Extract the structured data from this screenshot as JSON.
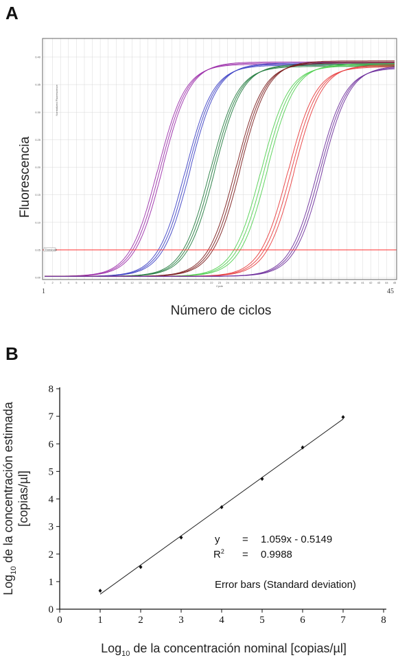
{
  "panelA": {
    "letter": "A",
    "ylabel": "Fluorescencia",
    "xlabel": "Número de ciclos",
    "x_start_label": "1",
    "x_end_label": "45",
    "threshold_label": "Threshold",
    "tiny_axis_label": "Cycle",
    "tiny_yaxis_label": "Normalized Fluorescence",
    "threshold_color": "#ff3030",
    "chart_data": {
      "type": "line",
      "xlim": [
        1,
        45
      ],
      "ylim": [
        0.0,
        0.4
      ],
      "y_ticks": [
        "0.00",
        "0.05",
        "0.10",
        "0.15",
        "0.20",
        "0.25",
        "0.30",
        "0.35",
        "0.40"
      ],
      "x_ticks": [
        "1",
        "2",
        "3",
        "4",
        "5",
        "6",
        "7",
        "8",
        "9",
        "10",
        "11",
        "12",
        "13",
        "14",
        "15",
        "16",
        "17",
        "18",
        "19",
        "20",
        "21",
        "22",
        "23",
        "24",
        "25",
        "26",
        "27",
        "28",
        "29",
        "30",
        "31",
        "32",
        "33",
        "34",
        "35",
        "36",
        "37",
        "38",
        "39",
        "40",
        "41",
        "42",
        "43",
        "44",
        "45"
      ],
      "threshold": 0.05,
      "groups": [
        {
          "color": "#9a2aa8",
          "midpoints": [
            15.2,
            15.5,
            15.8
          ],
          "plateau": 0.389
        },
        {
          "color": "#3b3fc4",
          "midpoints": [
            18.7,
            19.0,
            19.3
          ],
          "plateau": 0.387
        },
        {
          "color": "#1f7a3c",
          "midpoints": [
            21.8,
            22.1,
            22.4
          ],
          "plateau": 0.385
        },
        {
          "color": "#7a1a1a",
          "midpoints": [
            25.0,
            25.3,
            25.6
          ],
          "plateau": 0.391
        },
        {
          "color": "#4fcf4f",
          "midpoints": [
            28.2,
            28.6,
            29.0
          ],
          "plateau": 0.386
        },
        {
          "color": "#e8393a",
          "midpoints": [
            31.6,
            32.0,
            32.4
          ],
          "plateau": 0.384
        },
        {
          "color": "#6a2a9a",
          "midpoints": [
            35.3,
            35.6,
            35.9
          ],
          "plateau": 0.382
        }
      ]
    }
  },
  "panelB": {
    "letter": "B",
    "ylabel_line1_prefix": "Log",
    "ylabel_line1_sub": "10",
    "ylabel_line1_suffix": " de la concentración estimada",
    "ylabel_line2": "[copias/µl]",
    "xlabel_prefix": "Log",
    "xlabel_sub": "10",
    "xlabel_suffix": " de la concentración nominal  [copias/µl]",
    "eq_y_symbol": "y",
    "eq_y_equals": "=",
    "eq_y_value": "1.059x - 0.5149",
    "eq_r2_symbol": "R",
    "eq_r2_sup": "2",
    "eq_r2_equals": "=",
    "eq_r2_value": "0.9988",
    "error_bars_note": "Error bars (Standard deviation)",
    "chart_data": {
      "type": "scatter",
      "xlim": [
        0,
        8
      ],
      "ylim": [
        0,
        8
      ],
      "x_ticks": [
        "0",
        "1",
        "2",
        "3",
        "4",
        "5",
        "6",
        "7",
        "8"
      ],
      "y_ticks": [
        "0",
        "1",
        "2",
        "3",
        "4",
        "5",
        "6",
        "7",
        "8"
      ],
      "x": [
        1,
        2,
        3,
        4,
        5,
        6,
        7
      ],
      "y": [
        0.67,
        1.53,
        2.6,
        3.7,
        4.73,
        5.87,
        6.97
      ],
      "fit": {
        "slope": 1.059,
        "intercept": -0.5149,
        "x_range": [
          1,
          7
        ]
      }
    }
  }
}
